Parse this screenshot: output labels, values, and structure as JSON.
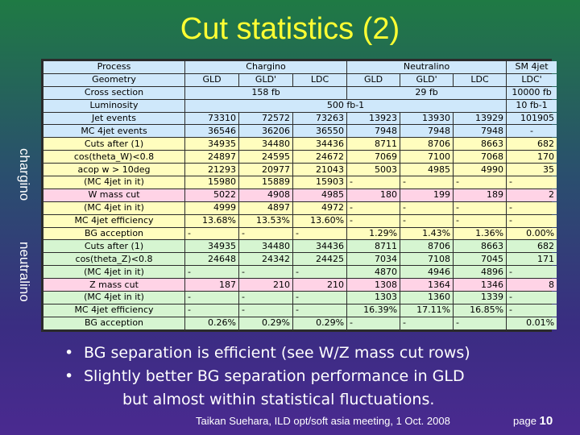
{
  "title": "Cut statistics (2)",
  "side_labels": {
    "chargino": "chargino",
    "neutralino": "neutralino"
  },
  "table": {
    "header": {
      "process_label": "Process",
      "chargino": "Chargino",
      "neutralino": "Neutralino",
      "sm4jet": "SM 4jet"
    },
    "geometry": {
      "label": "Geometry",
      "cols": [
        "GLD",
        "GLD'",
        "LDC",
        "GLD",
        "GLD'",
        "LDC",
        "LDC'"
      ]
    },
    "cross_section": {
      "label": "Cross section",
      "chargino": "158 fb",
      "neutralino": "29 fb",
      "sm4jet": "10000 fb"
    },
    "luminosity": {
      "label": "Luminosity",
      "signal": "500 fb-1",
      "sm4jet": "10 fb-1"
    },
    "jet_events": {
      "label": "Jet events",
      "values": [
        "73310",
        "72572",
        "73263",
        "13923",
        "13930",
        "13929",
        "101905"
      ]
    },
    "mc_events": {
      "label": "MC 4jet events",
      "values": [
        "36546",
        "36206",
        "36550",
        "7948",
        "7948",
        "7948",
        "-"
      ]
    },
    "chargino_rows": [
      {
        "label": "Cuts after (1)",
        "color": "yellow",
        "values": [
          "34935",
          "34480",
          "34436",
          "8711",
          "8706",
          "8663",
          "682"
        ]
      },
      {
        "label": "cos(theta_W)<0.8",
        "color": "yellow",
        "values": [
          "24897",
          "24595",
          "24672",
          "7069",
          "7100",
          "7068",
          "170"
        ]
      },
      {
        "label": "acop w > 10deg",
        "color": "yellow",
        "values": [
          "21293",
          "20977",
          "21043",
          "5003",
          "4985",
          "4990",
          "35"
        ]
      },
      {
        "label": "(MC 4jet in it)",
        "color": "yellow",
        "values": [
          "15980",
          "15889",
          "15903",
          "-",
          "-",
          "-",
          "-"
        ]
      },
      {
        "label": "W mass cut",
        "color": "pink",
        "values": [
          "5022",
          "4908",
          "4985",
          "180",
          "199",
          "189",
          "2"
        ]
      },
      {
        "label": "(MC 4jet in it)",
        "color": "yellow",
        "values": [
          "4999",
          "4897",
          "4972",
          "-",
          "-",
          "-",
          "-"
        ]
      },
      {
        "label": "MC 4jet efficiency",
        "color": "yellow",
        "values": [
          "13.68%",
          "13.53%",
          "13.60%",
          "-",
          "-",
          "-",
          "-"
        ]
      },
      {
        "label": "BG acception",
        "color": "yellow",
        "values": [
          "-",
          "-",
          "-",
          "1.29%",
          "1.43%",
          "1.36%",
          "0.00%"
        ]
      }
    ],
    "neutralino_rows": [
      {
        "label": "Cuts after (1)",
        "color": "green",
        "values": [
          "34935",
          "34480",
          "34436",
          "8711",
          "8706",
          "8663",
          "682"
        ]
      },
      {
        "label": "cos(theta_Z)<0.8",
        "color": "green",
        "values": [
          "24648",
          "24342",
          "24425",
          "7034",
          "7108",
          "7045",
          "171"
        ]
      },
      {
        "label": "(MC 4jet in it)",
        "color": "green",
        "values": [
          "-",
          "-",
          "-",
          "4870",
          "4946",
          "4896",
          "-"
        ]
      },
      {
        "label": "Z mass cut",
        "color": "pink",
        "values": [
          "187",
          "210",
          "210",
          "1308",
          "1364",
          "1346",
          "8"
        ]
      },
      {
        "label": "(MC 4jet in it)",
        "color": "green",
        "values": [
          "-",
          "-",
          "-",
          "1303",
          "1360",
          "1339",
          "-"
        ]
      },
      {
        "label": "MC 4jet efficiency",
        "color": "green",
        "values": [
          "-",
          "-",
          "-",
          "16.39%",
          "17.11%",
          "16.85%",
          "-"
        ]
      },
      {
        "label": "BG acception",
        "color": "green",
        "values": [
          "0.26%",
          "0.29%",
          "0.29%",
          "-",
          "-",
          "-",
          "0.01%"
        ]
      }
    ]
  },
  "bullets": {
    "b1": "BG separation is efficient (see W/Z mass cut rows)",
    "b2": "Slightly better BG separation performance in GLD",
    "b2_cont": "but almost within statistical fluctuations.",
    "dot": "•"
  },
  "footer": {
    "text": "Taikan Suehara, ILD opt/soft asia meeting, 1 Oct. 2008",
    "page_label": "page",
    "page_number": "10"
  },
  "colors": {
    "title": "#ffff33",
    "blue_row": "#cfe8fb",
    "yellow_row": "#fffdbe",
    "pink_row": "#ffd3e6",
    "green_row": "#d6f5d1"
  }
}
